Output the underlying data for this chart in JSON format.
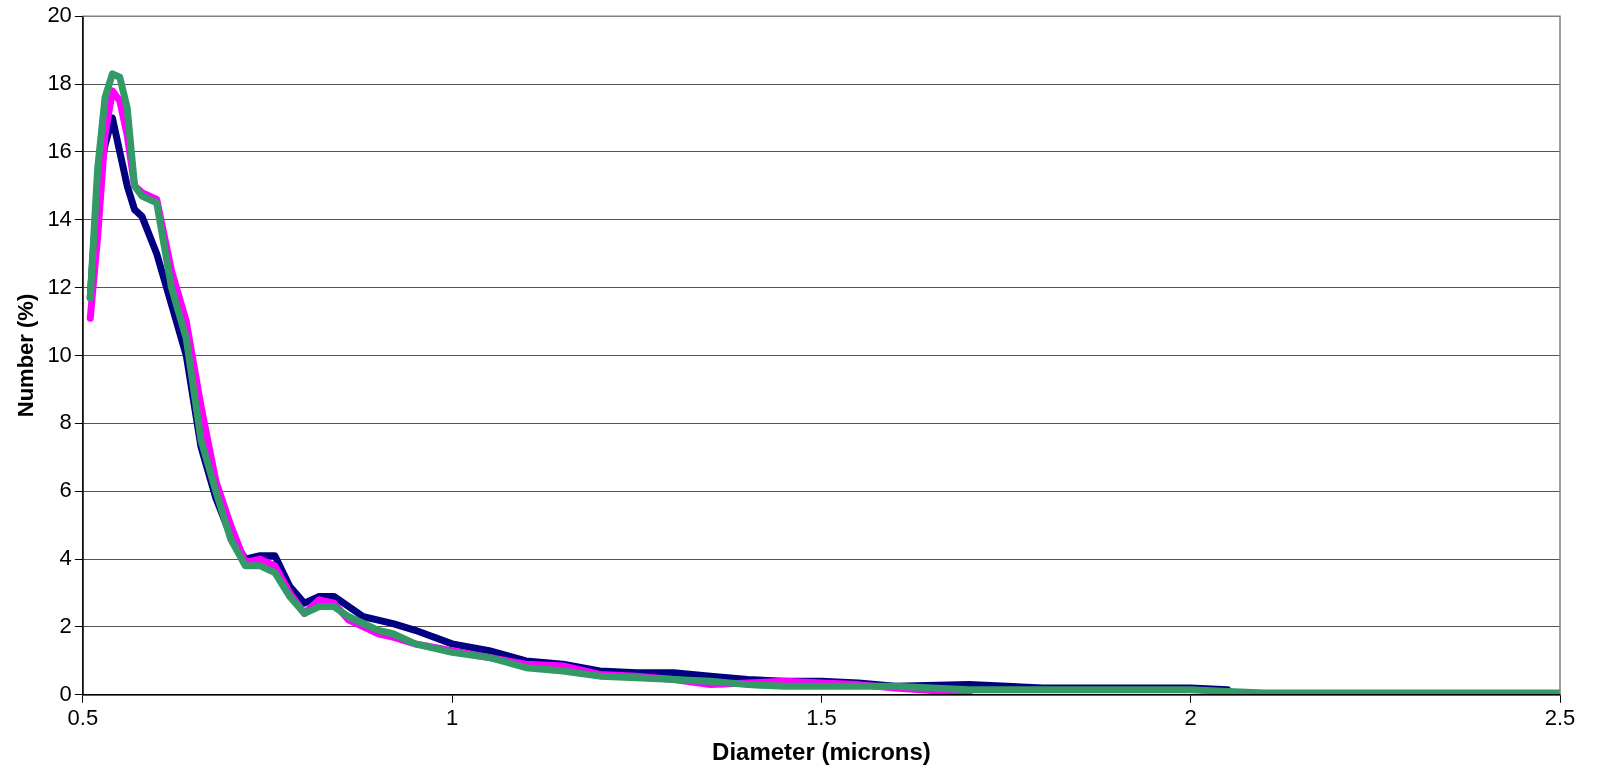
{
  "chart_data": {
    "type": "line",
    "xlabel": "Diameter (microns)",
    "ylabel": "Number (%)",
    "xlim": [
      0.5,
      2.5
    ],
    "xticks": [
      0.5,
      1,
      1.5,
      2,
      2.5
    ],
    "ylim": [
      0,
      20
    ],
    "yticks": [
      0,
      2,
      4,
      6,
      8,
      10,
      12,
      14,
      16,
      18,
      20
    ],
    "grid": "y",
    "legend": false,
    "marker": "none",
    "line_style": "solid",
    "x": [
      0.51,
      0.52,
      0.53,
      0.54,
      0.55,
      0.56,
      0.57,
      0.58,
      0.6,
      0.62,
      0.64,
      0.66,
      0.68,
      0.7,
      0.72,
      0.74,
      0.76,
      0.78,
      0.8,
      0.82,
      0.84,
      0.86,
      0.88,
      0.9,
      0.92,
      0.95,
      1.0,
      1.05,
      1.1,
      1.15,
      1.2,
      1.25,
      1.3,
      1.35,
      1.4,
      1.45,
      1.5,
      1.55,
      1.6,
      1.7,
      1.8,
      1.9,
      2.0,
      2.05,
      2.1,
      2.5
    ],
    "series": [
      {
        "color": "#000080",
        "values": [
          11.7,
          15,
          16.2,
          17,
          16,
          15,
          14.3,
          14.1,
          13,
          11.5,
          10,
          7.3,
          5.8,
          4.7,
          4,
          4.1,
          4.1,
          3.2,
          2.7,
          2.9,
          2.9,
          2.6,
          2.3,
          2.2,
          2.1,
          1.9,
          1.5,
          1.3,
          1.0,
          0.9,
          0.7,
          0.65,
          0.65,
          0.55,
          0.45,
          0.4,
          0.4,
          0.35,
          0.25,
          0.3,
          0.2,
          0.2,
          0.2,
          0.15,
          null,
          null
        ]
      },
      {
        "color": "#ff00ff",
        "values": [
          11.1,
          13.5,
          16.5,
          17.8,
          17.5,
          16.5,
          15,
          14.8,
          14.6,
          12.5,
          11,
          8.5,
          6.3,
          5,
          3.9,
          4,
          3.8,
          3,
          2.4,
          2.8,
          2.7,
          2.2,
          2,
          1.8,
          1.7,
          1.5,
          1.3,
          1.1,
          0.9,
          0.85,
          0.6,
          0.55,
          0.45,
          0.3,
          0.35,
          0.4,
          0.35,
          0.3,
          0.2,
          0.05,
          null,
          null,
          null,
          null,
          null,
          null
        ]
      },
      {
        "color": "#339966",
        "values": [
          11.7,
          15.5,
          17.6,
          18.3,
          18.2,
          17.3,
          15,
          14.7,
          14.5,
          12,
          10.5,
          7.5,
          6,
          4.6,
          3.8,
          3.8,
          3.6,
          2.9,
          2.4,
          2.6,
          2.6,
          2.3,
          2.1,
          1.9,
          1.8,
          1.5,
          1.25,
          1.1,
          0.8,
          0.7,
          0.55,
          0.5,
          0.45,
          0.4,
          0.3,
          0.25,
          0.25,
          0.25,
          0.25,
          0.15,
          0.15,
          0.15,
          0.15,
          0.1,
          0.05,
          0.05
        ]
      }
    ]
  }
}
